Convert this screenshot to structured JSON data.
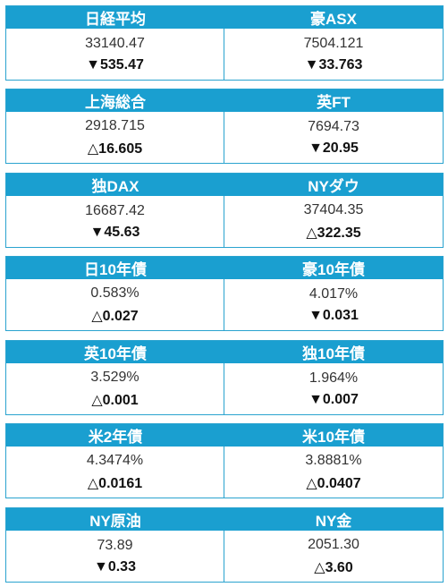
{
  "groups": [
    {
      "left": {
        "label": "日経平均",
        "value": "33140.47",
        "change": "▼535.47"
      },
      "right": {
        "label": "豪ASX",
        "value": "7504.121",
        "change": "▼33.763"
      }
    },
    {
      "left": {
        "label": "上海総合",
        "value": "2918.715",
        "change": "△16.605"
      },
      "right": {
        "label": "英FT",
        "value": "7694.73",
        "change": "▼20.95"
      }
    },
    {
      "left": {
        "label": "独DAX",
        "value": "16687.42",
        "change": "▼45.63"
      },
      "right": {
        "label": "NYダウ",
        "value": "37404.35",
        "change": "△322.35"
      }
    },
    {
      "left": {
        "label": "日10年債",
        "value": "0.583%",
        "change": "△0.027"
      },
      "right": {
        "label": "豪10年債",
        "value": "4.017%",
        "change": "▼0.031"
      }
    },
    {
      "left": {
        "label": "英10年債",
        "value": "3.529%",
        "change": "△0.001"
      },
      "right": {
        "label": "独10年債",
        "value": "1.964%",
        "change": "▼0.007"
      }
    },
    {
      "left": {
        "label": "米2年債",
        "value": "4.3474%",
        "change": "△0.0161"
      },
      "right": {
        "label": "米10年債",
        "value": "3.8881%",
        "change": "△0.0407"
      }
    },
    {
      "left": {
        "label": "NY原油",
        "value": "73.89",
        "change": "▼0.33"
      },
      "right": {
        "label": "NY金",
        "value": "2051.30",
        "change": "△3.60"
      }
    }
  ],
  "colors": {
    "header_bg": "#1a9fd0",
    "border": "#2aa3cf"
  }
}
